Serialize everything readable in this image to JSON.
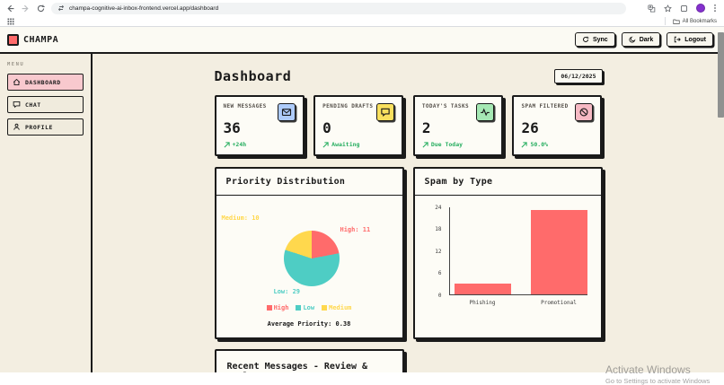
{
  "browser": {
    "url": "champa-cognitive-ai-inbox-frontend.vercel.app/dashboard",
    "bookmarks_label": "All Bookmarks"
  },
  "header": {
    "brand": "CHAMPA",
    "sync_label": "Sync",
    "dark_label": "Dark",
    "logout_label": "Logout",
    "logo_color": "#ff6b6b"
  },
  "sidebar": {
    "menu_label": "MENU",
    "items": [
      {
        "label": "DASHBOARD",
        "icon": "home-icon",
        "active": true,
        "active_bg": "#f8c9ce"
      },
      {
        "label": "CHAT",
        "icon": "chat-icon",
        "active": false
      },
      {
        "label": "PROFILE",
        "icon": "person-icon",
        "active": false
      }
    ]
  },
  "main": {
    "title": "Dashboard",
    "date": "06/12/2025",
    "stats": [
      {
        "label": "NEW MESSAGES",
        "value": "36",
        "sub": "+24h",
        "icon": "envelope-icon",
        "icon_bg": "#aecbfa"
      },
      {
        "label": "PENDING DRAFTS",
        "value": "0",
        "sub": "Awaiting",
        "icon": "draft-bubble-icon",
        "icon_bg": "#f9e05e"
      },
      {
        "label": "TODAY'S TASKS",
        "value": "2",
        "sub": "Due Today",
        "icon": "activity-icon",
        "icon_bg": "#a5e8b4"
      },
      {
        "label": "SPAM FILTERED",
        "value": "26",
        "sub": "50.0%",
        "icon": "ban-icon",
        "icon_bg": "#f6b9c3"
      }
    ],
    "sub_color": "#27ae60",
    "recent_title": "Recent Messages - Review & Reply"
  },
  "chart_data": [
    {
      "type": "pie",
      "title": "Priority Distribution",
      "labels": [
        "High",
        "Low",
        "Medium"
      ],
      "values": [
        11,
        29,
        10
      ],
      "colors": [
        "#ff6b6b",
        "#4ecdc4",
        "#ffd84d"
      ],
      "slice_labels": [
        "High: 11",
        "Low: 29",
        "Medium: 10"
      ],
      "legend": [
        "High",
        "Low",
        "Medium"
      ],
      "legend_position": "bottom",
      "footer": "Average Priority: 0.38"
    },
    {
      "type": "bar",
      "title": "Spam by Type",
      "categories": [
        "Phishing",
        "Promotional"
      ],
      "values": [
        3,
        23
      ],
      "bar_color": "#ff6b6b",
      "yticks": [
        0,
        6,
        12,
        18,
        24
      ],
      "ylim": [
        0,
        24
      ],
      "grid": false
    }
  ],
  "watermark": {
    "line1": "Activate Windows",
    "line2": "Go to Settings to activate Windows"
  }
}
